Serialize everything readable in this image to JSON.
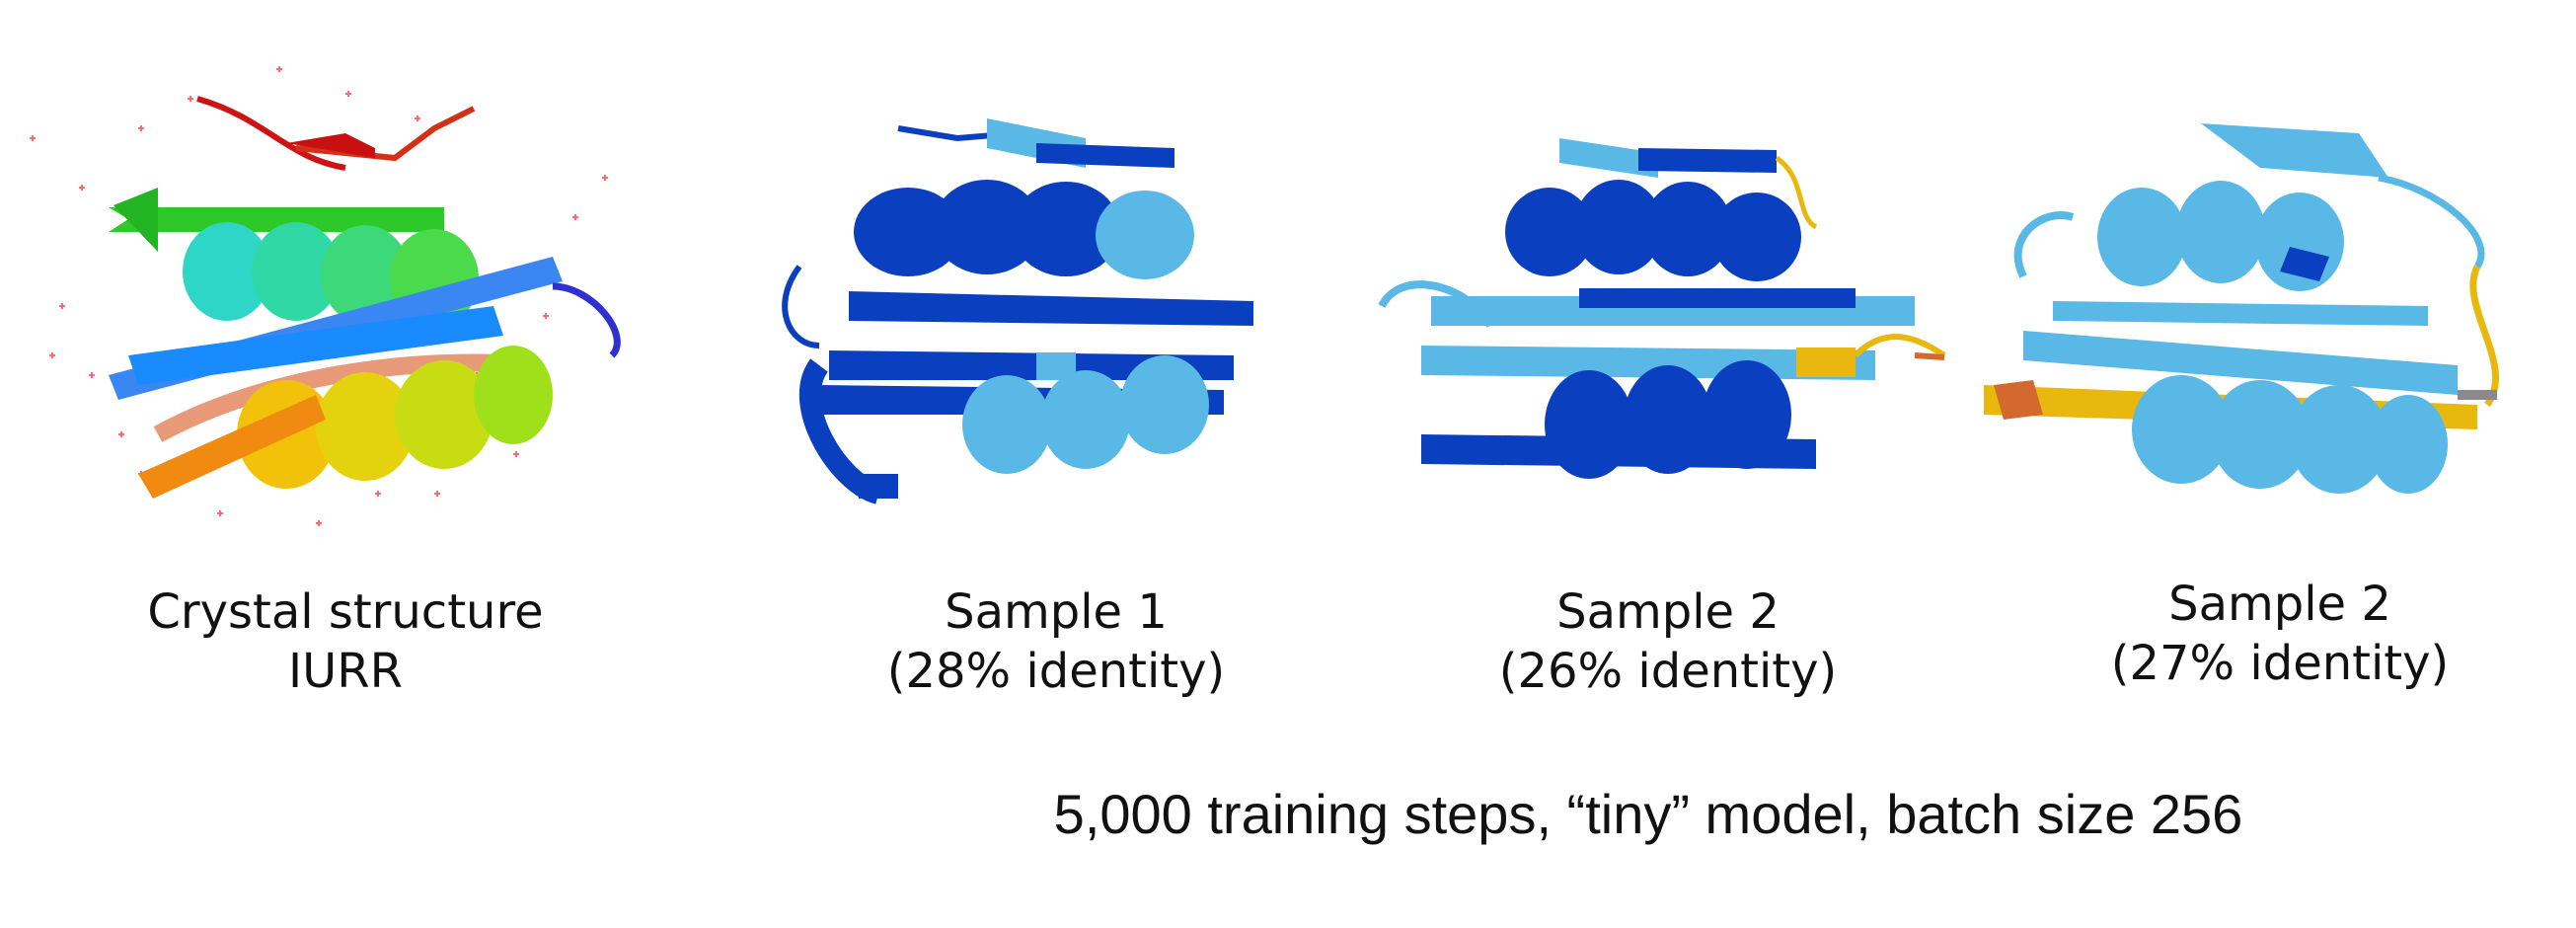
{
  "panels": [
    {
      "line1": "Crystal structure",
      "line2": "IURR"
    },
    {
      "line1": "Sample 1",
      "line2": "(28% identity)"
    },
    {
      "line1": "Sample 2",
      "line2": "(26% identity)"
    },
    {
      "line1": "Sample 2",
      "line2": "(27% identity)"
    }
  ],
  "footer": "5,000 training steps, “tiny” model, batch size 256",
  "colors": {
    "dark_blue": "#0a3fbf",
    "light_blue": "#5ab8e6",
    "gold": "#e8b80f",
    "orange": "#d4692f",
    "water": "#ff5a5a"
  },
  "icons": [
    "crystal-structure-ribbon",
    "sample-1-ribbon",
    "sample-2-ribbon",
    "sample-3-ribbon"
  ]
}
